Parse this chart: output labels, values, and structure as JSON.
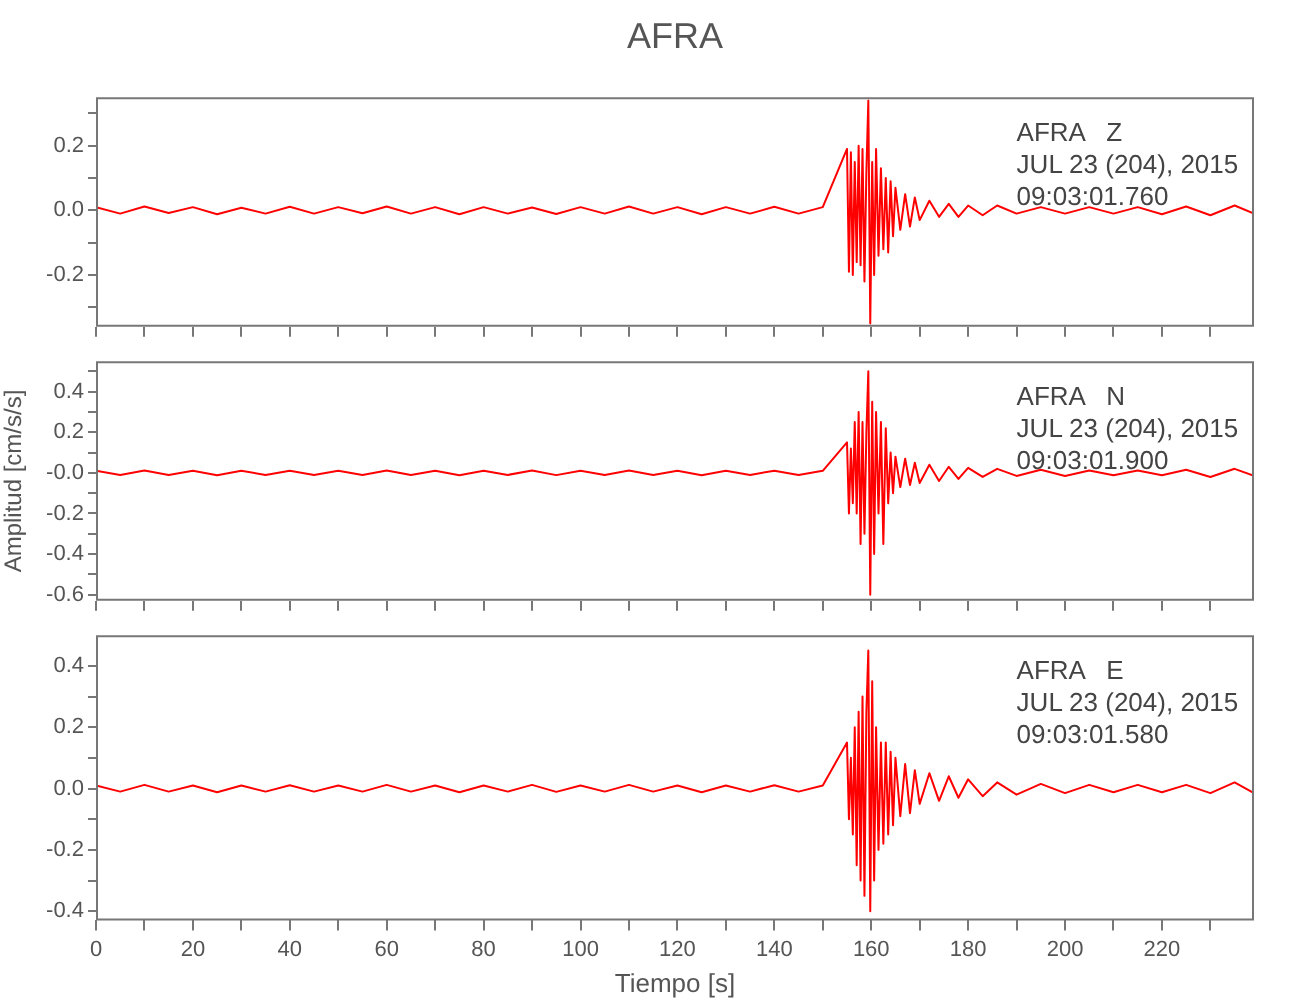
{
  "chart_data": [
    {
      "type": "line",
      "title": "AFRA",
      "marker": "none",
      "grid": false,
      "tick_labels": "y",
      "x": [
        0,
        5,
        10,
        15,
        20,
        25,
        30,
        35,
        40,
        45,
        50,
        55,
        60,
        65,
        70,
        75,
        80,
        85,
        90,
        95,
        100,
        105,
        110,
        115,
        120,
        125,
        130,
        135,
        140,
        145,
        150,
        155,
        155.4,
        155.8,
        156.2,
        156.6,
        157,
        157.4,
        157.8,
        158.2,
        158.6,
        159,
        159.4,
        159.8,
        160.2,
        160.6,
        161,
        161.5,
        162,
        162.5,
        163,
        163.5,
        164,
        164.5,
        165,
        166,
        167,
        168,
        169,
        170,
        172,
        174,
        176,
        178,
        180,
        183,
        186,
        190,
        195,
        200,
        205,
        210,
        215,
        220,
        225,
        230,
        235,
        239
      ],
      "series": [
        {
          "color": "#ff0000",
          "values": [
            0.01,
            -0.01,
            0.012,
            -0.008,
            0.01,
            -0.012,
            0.008,
            -0.01,
            0.011,
            -0.01,
            0.01,
            -0.009,
            0.012,
            -0.01,
            0.01,
            -0.012,
            0.01,
            -0.01,
            0.009,
            -0.011,
            0.01,
            -0.01,
            0.012,
            -0.01,
            0.01,
            -0.012,
            0.01,
            -0.01,
            0.011,
            -0.01,
            0.01,
            0.19,
            -0.19,
            0.18,
            -0.2,
            0.15,
            -0.16,
            0.2,
            -0.17,
            0.19,
            -0.22,
            0.12,
            0.34,
            -0.35,
            0.15,
            -0.2,
            0.19,
            -0.14,
            0.13,
            -0.12,
            0.1,
            -0.13,
            0.09,
            -0.08,
            0.07,
            -0.06,
            0.05,
            -0.05,
            0.04,
            -0.03,
            0.03,
            -0.02,
            0.02,
            -0.02,
            0.015,
            -0.015,
            0.015,
            -0.01,
            0.01,
            -0.01,
            0.01,
            -0.01,
            0.01,
            -0.012,
            0.012,
            -0.015,
            0.015,
            -0.01
          ]
        }
      ],
      "xlim": [
        0,
        239
      ],
      "ylim": [
        -0.36,
        0.35
      ],
      "xticks": [
        0,
        {
          "value": 10,
          "label": null
        },
        20,
        {
          "value": 30,
          "label": null
        },
        40,
        {
          "value": 50,
          "label": null
        },
        60,
        {
          "value": 70,
          "label": null
        },
        80,
        {
          "value": 90,
          "label": null
        },
        100,
        {
          "value": 110,
          "label": null
        },
        120,
        {
          "value": 130,
          "label": null
        },
        140,
        {
          "value": 150,
          "label": null
        },
        160,
        {
          "value": 170,
          "label": null
        },
        180,
        {
          "value": 190,
          "label": null
        },
        200,
        {
          "value": 210,
          "label": null
        },
        220,
        {
          "value": 230,
          "label": null
        }
      ],
      "yticks": [
        {
          "value": -0.3,
          "label": null
        },
        -0.2,
        {
          "value": -0.1,
          "label": null
        },
        {
          "value": 0,
          "label": "0.0"
        },
        {
          "value": 0.1,
          "label": null
        },
        0.2,
        {
          "value": 0.3,
          "label": null
        }
      ],
      "annotations": [
        "AFRA   Z",
        "JUL 23 (204), 2015",
        "09:03:01.760"
      ]
    },
    {
      "type": "line",
      "ylabel": "Amplitud [cm/s/s]",
      "marker": "none",
      "grid": false,
      "tick_labels": "y",
      "x": [
        0,
        5,
        10,
        15,
        20,
        25,
        30,
        35,
        40,
        45,
        50,
        55,
        60,
        65,
        70,
        75,
        80,
        85,
        90,
        95,
        100,
        105,
        110,
        115,
        120,
        125,
        130,
        135,
        140,
        145,
        150,
        155,
        155.4,
        155.8,
        156.2,
        156.6,
        157,
        157.4,
        157.8,
        158.2,
        158.6,
        159,
        159.4,
        159.8,
        160.2,
        160.6,
        161,
        161.5,
        162,
        162.5,
        163,
        163.5,
        164,
        164.5,
        165,
        166,
        167,
        168,
        169,
        170,
        172,
        174,
        176,
        178,
        180,
        183,
        186,
        190,
        195,
        200,
        205,
        210,
        215,
        220,
        225,
        230,
        235,
        239
      ],
      "series": [
        {
          "color": "#ff0000",
          "values": [
            0.01,
            -0.01,
            0.012,
            -0.01,
            0.01,
            -0.012,
            0.01,
            -0.01,
            0.011,
            -0.01,
            0.01,
            -0.01,
            0.012,
            -0.01,
            0.01,
            -0.012,
            0.01,
            -0.01,
            0.012,
            -0.011,
            0.01,
            -0.01,
            0.012,
            -0.01,
            0.01,
            -0.012,
            0.01,
            -0.01,
            0.011,
            -0.01,
            0.01,
            0.15,
            -0.2,
            0.12,
            -0.15,
            0.25,
            -0.2,
            0.3,
            -0.35,
            0.25,
            -0.3,
            0.2,
            0.5,
            -0.6,
            0.35,
            -0.4,
            0.3,
            -0.2,
            0.25,
            -0.35,
            0.22,
            -0.15,
            0.1,
            -0.1,
            0.08,
            -0.07,
            0.07,
            -0.06,
            0.05,
            -0.05,
            0.04,
            -0.04,
            0.03,
            -0.03,
            0.025,
            -0.02,
            0.02,
            -0.015,
            0.015,
            -0.015,
            0.012,
            -0.012,
            0.012,
            -0.012,
            0.015,
            -0.02,
            0.02,
            -0.015
          ]
        }
      ],
      "xlim": [
        0,
        239
      ],
      "ylim": [
        -0.63,
        0.55
      ],
      "xticks": [
        0,
        {
          "value": 10,
          "label": null
        },
        20,
        {
          "value": 30,
          "label": null
        },
        40,
        {
          "value": 50,
          "label": null
        },
        60,
        {
          "value": 70,
          "label": null
        },
        80,
        {
          "value": 90,
          "label": null
        },
        100,
        {
          "value": 110,
          "label": null
        },
        120,
        {
          "value": 130,
          "label": null
        },
        140,
        {
          "value": 150,
          "label": null
        },
        160,
        {
          "value": 170,
          "label": null
        },
        180,
        {
          "value": 190,
          "label": null
        },
        200,
        {
          "value": 210,
          "label": null
        },
        220,
        {
          "value": 230,
          "label": null
        }
      ],
      "yticks": [
        -0.6,
        {
          "value": -0.5,
          "label": null
        },
        -0.4,
        {
          "value": -0.3,
          "label": null
        },
        -0.2,
        {
          "value": -0.1,
          "label": null
        },
        {
          "value": 0,
          "label": "-0.0"
        },
        {
          "value": 0.1,
          "label": null
        },
        0.2,
        {
          "value": 0.3,
          "label": null
        },
        0.4,
        {
          "value": 0.5,
          "label": null
        }
      ],
      "annotations": [
        "AFRA   N",
        "JUL 23 (204), 2015",
        "09:03:01.900"
      ]
    },
    {
      "type": "line",
      "xlabel": "Tiempo [s]",
      "marker": "none",
      "grid": false,
      "x": [
        0,
        5,
        10,
        15,
        20,
        25,
        30,
        35,
        40,
        45,
        50,
        55,
        60,
        65,
        70,
        75,
        80,
        85,
        90,
        95,
        100,
        105,
        110,
        115,
        120,
        125,
        130,
        135,
        140,
        145,
        150,
        155,
        155.4,
        155.8,
        156.2,
        156.6,
        157,
        157.4,
        157.8,
        158.2,
        158.6,
        159,
        159.4,
        159.8,
        160.2,
        160.6,
        161,
        161.5,
        162,
        162.5,
        163,
        163.5,
        164,
        164.5,
        165,
        166,
        167,
        168,
        169,
        170,
        172,
        174,
        176,
        178,
        180,
        183,
        186,
        190,
        195,
        200,
        205,
        210,
        215,
        220,
        225,
        230,
        235,
        239
      ],
      "series": [
        {
          "color": "#ff0000",
          "values": [
            0.01,
            -0.01,
            0.012,
            -0.01,
            0.01,
            -0.012,
            0.01,
            -0.01,
            0.011,
            -0.01,
            0.01,
            -0.01,
            0.012,
            -0.01,
            0.01,
            -0.012,
            0.01,
            -0.01,
            0.012,
            -0.011,
            0.01,
            -0.01,
            0.012,
            -0.01,
            0.01,
            -0.012,
            0.01,
            -0.01,
            0.011,
            -0.01,
            0.01,
            0.15,
            -0.1,
            0.1,
            -0.15,
            0.2,
            -0.25,
            0.25,
            -0.3,
            0.3,
            -0.35,
            0.25,
            0.45,
            -0.4,
            0.35,
            -0.3,
            0.2,
            -0.2,
            0.15,
            -0.18,
            0.15,
            -0.15,
            0.12,
            -0.12,
            0.1,
            -0.09,
            0.08,
            -0.08,
            0.06,
            -0.05,
            0.05,
            -0.04,
            0.04,
            -0.03,
            0.03,
            -0.025,
            0.02,
            -0.02,
            0.015,
            -0.015,
            0.012,
            -0.012,
            0.012,
            -0.012,
            0.012,
            -0.015,
            0.02,
            -0.015
          ]
        }
      ],
      "xlim": [
        0,
        239
      ],
      "ylim": [
        -0.43,
        0.5
      ],
      "xticks": [
        0,
        {
          "value": 10,
          "label": null
        },
        20,
        {
          "value": 30,
          "label": null
        },
        40,
        {
          "value": 50,
          "label": null
        },
        60,
        {
          "value": 70,
          "label": null
        },
        80,
        {
          "value": 90,
          "label": null
        },
        100,
        {
          "value": 110,
          "label": null
        },
        120,
        {
          "value": 130,
          "label": null
        },
        140,
        {
          "value": 150,
          "label": null
        },
        160,
        {
          "value": 170,
          "label": null
        },
        180,
        {
          "value": 190,
          "label": null
        },
        200,
        {
          "value": 210,
          "label": null
        },
        220,
        {
          "value": 230,
          "label": null
        }
      ],
      "yticks": [
        -0.4,
        {
          "value": -0.3,
          "label": null
        },
        -0.2,
        {
          "value": -0.1,
          "label": null
        },
        {
          "value": 0,
          "label": "0.0"
        },
        {
          "value": 0.1,
          "label": null
        },
        0.2,
        {
          "value": 0.3,
          "label": null
        },
        0.4
      ],
      "annotations": [
        "AFRA   E",
        "JUL 23 (204), 2015",
        "09:03:01.580"
      ]
    }
  ]
}
